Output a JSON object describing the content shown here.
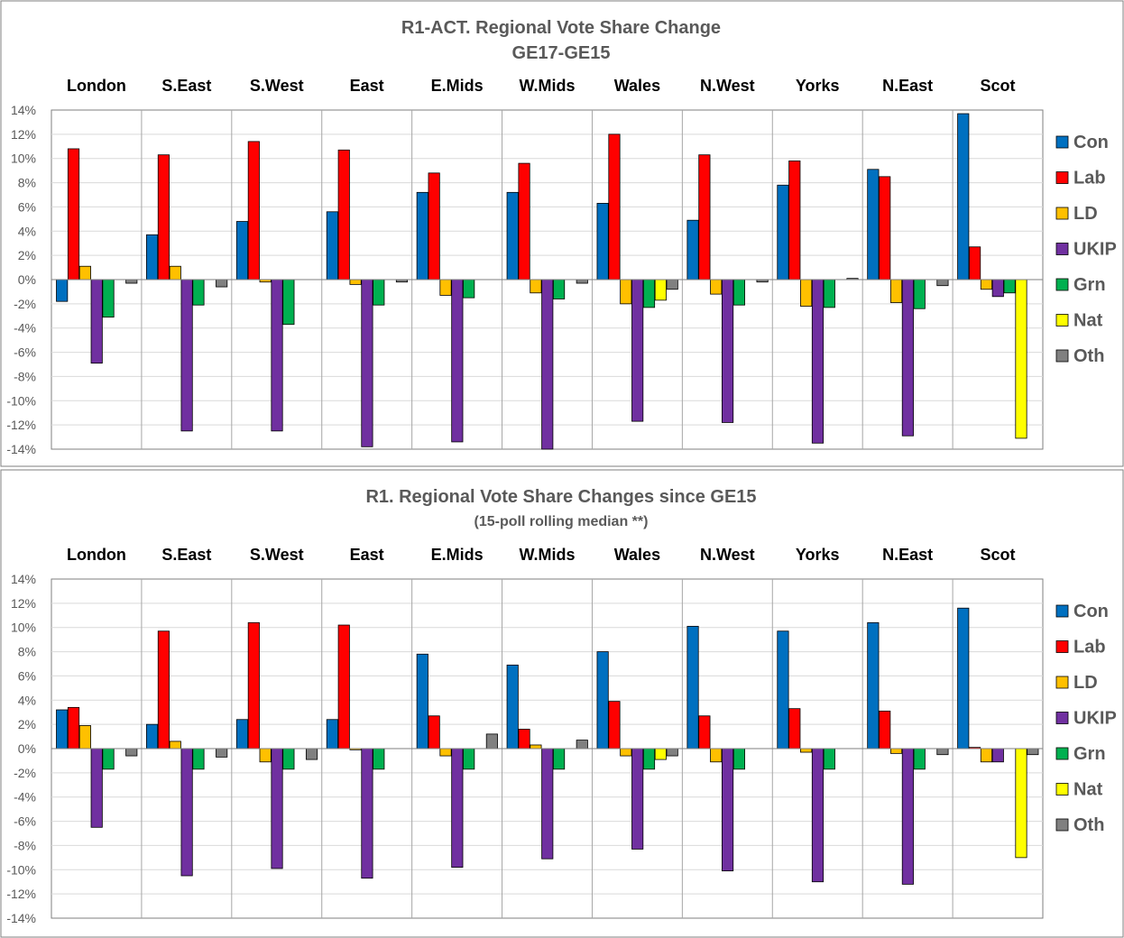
{
  "chart_data": [
    {
      "type": "bar",
      "title": "R1-ACT. Regional Vote Share Change",
      "subtitle": "GE17-GE15",
      "regions": [
        "London",
        "S.East",
        "S.West",
        "East",
        "E.Mids",
        "W.Mids",
        "Wales",
        "N.West",
        "Yorks",
        "N.East",
        "Scot"
      ],
      "y_ticks": [
        "14%",
        "12%",
        "10%",
        "8%",
        "6%",
        "4%",
        "2%",
        "0%",
        "-2%",
        "-4%",
        "-6%",
        "-8%",
        "-10%",
        "-12%",
        "-14%"
      ],
      "ylim": [
        -14,
        14
      ],
      "ylabel": "",
      "series": [
        {
          "name": "Con",
          "color": "#0070C0",
          "values": [
            -1.8,
            3.7,
            4.8,
            5.6,
            7.2,
            7.2,
            6.3,
            4.9,
            7.8,
            9.1,
            13.7
          ]
        },
        {
          "name": "Lab",
          "color": "#FF0000",
          "values": [
            10.8,
            10.3,
            11.4,
            10.7,
            8.8,
            9.6,
            12.0,
            10.3,
            9.8,
            8.5,
            2.7
          ]
        },
        {
          "name": "LD",
          "color": "#FFC000",
          "values": [
            1.1,
            1.1,
            -0.2,
            -0.4,
            -1.3,
            -1.1,
            -2.0,
            -1.2,
            -2.2,
            -1.9,
            -0.8
          ]
        },
        {
          "name": "UKIP",
          "color": "#7030A0",
          "values": [
            -6.9,
            -12.5,
            -12.5,
            -13.8,
            -13.4,
            -14.0,
            -11.7,
            -11.8,
            -13.5,
            -12.9,
            -1.4
          ]
        },
        {
          "name": "Grn",
          "color": "#00B050",
          "values": [
            -3.1,
            -2.1,
            -3.7,
            -2.1,
            -1.5,
            -1.6,
            -2.3,
            -2.1,
            -2.3,
            -2.4,
            -1.1
          ]
        },
        {
          "name": "Nat",
          "color": "#FFFF00",
          "values": [
            0,
            0,
            0,
            0,
            0,
            0,
            -1.7,
            0,
            0,
            0,
            -13.1
          ]
        },
        {
          "name": "Oth",
          "color": "#808080",
          "values": [
            -0.3,
            -0.6,
            0,
            -0.2,
            0,
            -0.3,
            -0.8,
            -0.2,
            0.1,
            -0.5,
            0
          ]
        }
      ],
      "legend": "right"
    },
    {
      "type": "bar",
      "title": "R1. Regional Vote Share Changes since GE15",
      "subtitle": "(15-poll rolling median **)",
      "regions": [
        "London",
        "S.East",
        "S.West",
        "East",
        "E.Mids",
        "W.Mids",
        "Wales",
        "N.West",
        "Yorks",
        "N.East",
        "Scot"
      ],
      "y_ticks": [
        "14%",
        "12%",
        "10%",
        "8%",
        "6%",
        "4%",
        "2%",
        "0%",
        "-2%",
        "-4%",
        "-6%",
        "-8%",
        "-10%",
        "-12%",
        "-14%"
      ],
      "ylim": [
        -14,
        14
      ],
      "ylabel": "",
      "series": [
        {
          "name": "Con",
          "color": "#0070C0",
          "values": [
            3.2,
            2.0,
            2.4,
            2.4,
            7.8,
            6.9,
            8.0,
            10.1,
            9.7,
            10.4,
            11.6
          ]
        },
        {
          "name": "Lab",
          "color": "#FF0000",
          "values": [
            3.4,
            9.7,
            10.4,
            10.2,
            2.7,
            1.6,
            3.9,
            2.7,
            3.3,
            3.1,
            0.1
          ]
        },
        {
          "name": "LD",
          "color": "#FFC000",
          "values": [
            1.9,
            0.6,
            -1.1,
            -0.1,
            -0.6,
            0.3,
            -0.6,
            -1.1,
            -0.3,
            -0.4,
            -1.1
          ]
        },
        {
          "name": "UKIP",
          "color": "#7030A0",
          "values": [
            -6.5,
            -10.5,
            -9.9,
            -10.7,
            -9.8,
            -9.1,
            -8.3,
            -10.1,
            -11.0,
            -11.2,
            -1.1
          ]
        },
        {
          "name": "Grn",
          "color": "#00B050",
          "values": [
            -1.7,
            -1.7,
            -1.7,
            -1.7,
            -1.7,
            -1.7,
            -1.7,
            -1.7,
            -1.7,
            -1.7,
            0
          ]
        },
        {
          "name": "Nat",
          "color": "#FFFF00",
          "values": [
            0,
            0,
            0,
            0,
            0,
            0,
            -0.9,
            0,
            0,
            0,
            -9.0
          ]
        },
        {
          "name": "Oth",
          "color": "#808080",
          "values": [
            -0.6,
            -0.7,
            -0.9,
            0,
            1.2,
            0.7,
            -0.6,
            0,
            0,
            -0.5,
            -0.5
          ]
        }
      ],
      "legend": "right"
    }
  ]
}
